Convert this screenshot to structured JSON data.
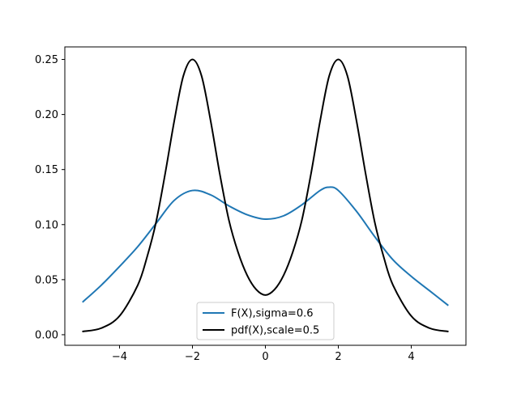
{
  "chart_data": {
    "type": "line",
    "title": "",
    "xlabel": "",
    "ylabel": "",
    "xlim": [
      -5.5,
      5.5
    ],
    "ylim": [
      -0.0096,
      0.2614
    ],
    "x_ticks": [
      -4,
      -2,
      0,
      2,
      4
    ],
    "x_tick_labels": [
      "−4",
      "−2",
      "0",
      "2",
      "4"
    ],
    "y_ticks": [
      0.0,
      0.05,
      0.1,
      0.15,
      0.2,
      0.25
    ],
    "y_tick_labels": [
      "0.00",
      "0.05",
      "0.10",
      "0.15",
      "0.20",
      "0.25"
    ],
    "grid": false,
    "legend_position": "bottom-center",
    "series": [
      {
        "name": "F(X),sigma=0.6",
        "color": "#1f77b4",
        "x": [
          -5.0,
          -4.5,
          -4.0,
          -3.5,
          -3.0,
          -2.5,
          -2.0,
          -1.5,
          -1.0,
          -0.5,
          0.0,
          0.5,
          1.0,
          1.5,
          1.75,
          2.0,
          2.5,
          3.0,
          3.5,
          4.0,
          4.5,
          5.0
        ],
        "y": [
          0.03,
          0.045,
          0.062,
          0.08,
          0.101,
          0.122,
          0.131,
          0.127,
          0.117,
          0.109,
          0.105,
          0.108,
          0.118,
          0.131,
          0.134,
          0.131,
          0.112,
          0.089,
          0.068,
          0.053,
          0.04,
          0.027
        ]
      },
      {
        "name": "pdf(X),scale=0.5",
        "color": "#000000",
        "x": [
          -5.0,
          -4.5,
          -4.0,
          -3.5,
          -3.25,
          -3.0,
          -2.75,
          -2.5,
          -2.25,
          -2.0,
          -1.75,
          -1.5,
          -1.25,
          -1.0,
          -0.75,
          -0.5,
          -0.25,
          0.0,
          0.25,
          0.5,
          0.75,
          1.0,
          1.25,
          1.5,
          1.75,
          2.0,
          2.25,
          2.5,
          2.75,
          3.0,
          3.25,
          3.5,
          4.0,
          4.5,
          5.0
        ],
        "y": [
          0.003,
          0.006,
          0.017,
          0.045,
          0.07,
          0.102,
          0.146,
          0.194,
          0.235,
          0.25,
          0.235,
          0.194,
          0.146,
          0.104,
          0.075,
          0.054,
          0.041,
          0.036,
          0.041,
          0.054,
          0.075,
          0.104,
          0.146,
          0.194,
          0.235,
          0.25,
          0.235,
          0.194,
          0.146,
          0.102,
          0.07,
          0.045,
          0.017,
          0.006,
          0.003
        ]
      }
    ]
  }
}
